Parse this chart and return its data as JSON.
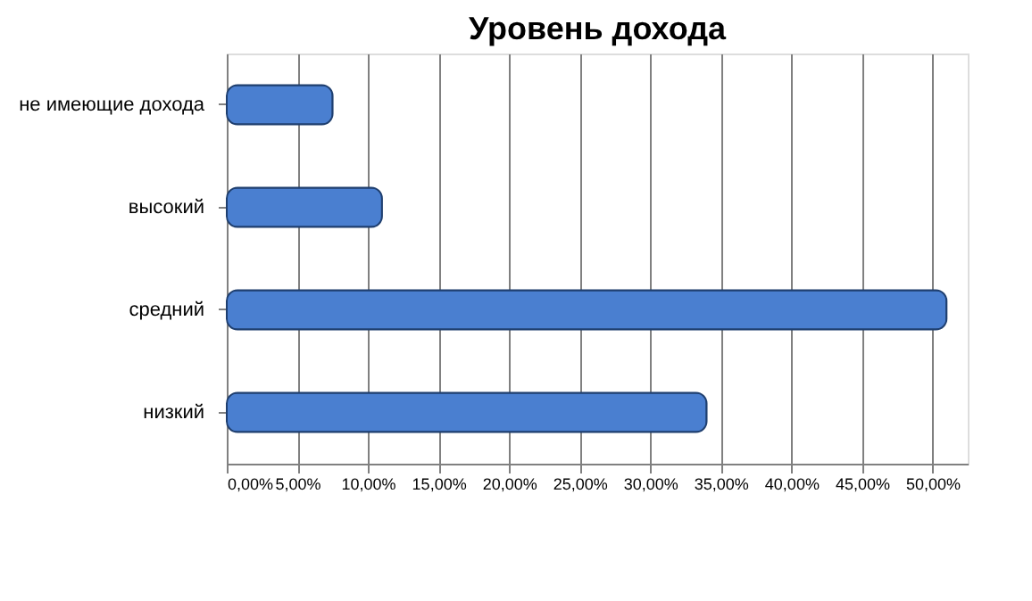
{
  "chart_data": {
    "type": "bar",
    "orientation": "horizontal",
    "title": "Уровень дохода",
    "categories": [
      "не имеющие дохода",
      "высокий",
      "средний",
      "низкий"
    ],
    "values": [
      7.5,
      11,
      51,
      34
    ],
    "color": "#4a7fd0",
    "xlim": [
      0,
      52.5
    ],
    "xticks": [
      {
        "value": 0,
        "label": "0,00%"
      },
      {
        "value": 5,
        "label": "5,00%"
      },
      {
        "value": 10,
        "label": "10,00%"
      },
      {
        "value": 15,
        "label": "15,00%"
      },
      {
        "value": 20,
        "label": "20,00%"
      },
      {
        "value": 25,
        "label": "25,00%"
      },
      {
        "value": 30,
        "label": "30,00%"
      },
      {
        "value": 35,
        "label": "35,00%"
      },
      {
        "value": 40,
        "label": "40,00%"
      },
      {
        "value": 45,
        "label": "45,00%"
      },
      {
        "value": 50,
        "label": "50,00%"
      }
    ],
    "grid": "x"
  }
}
